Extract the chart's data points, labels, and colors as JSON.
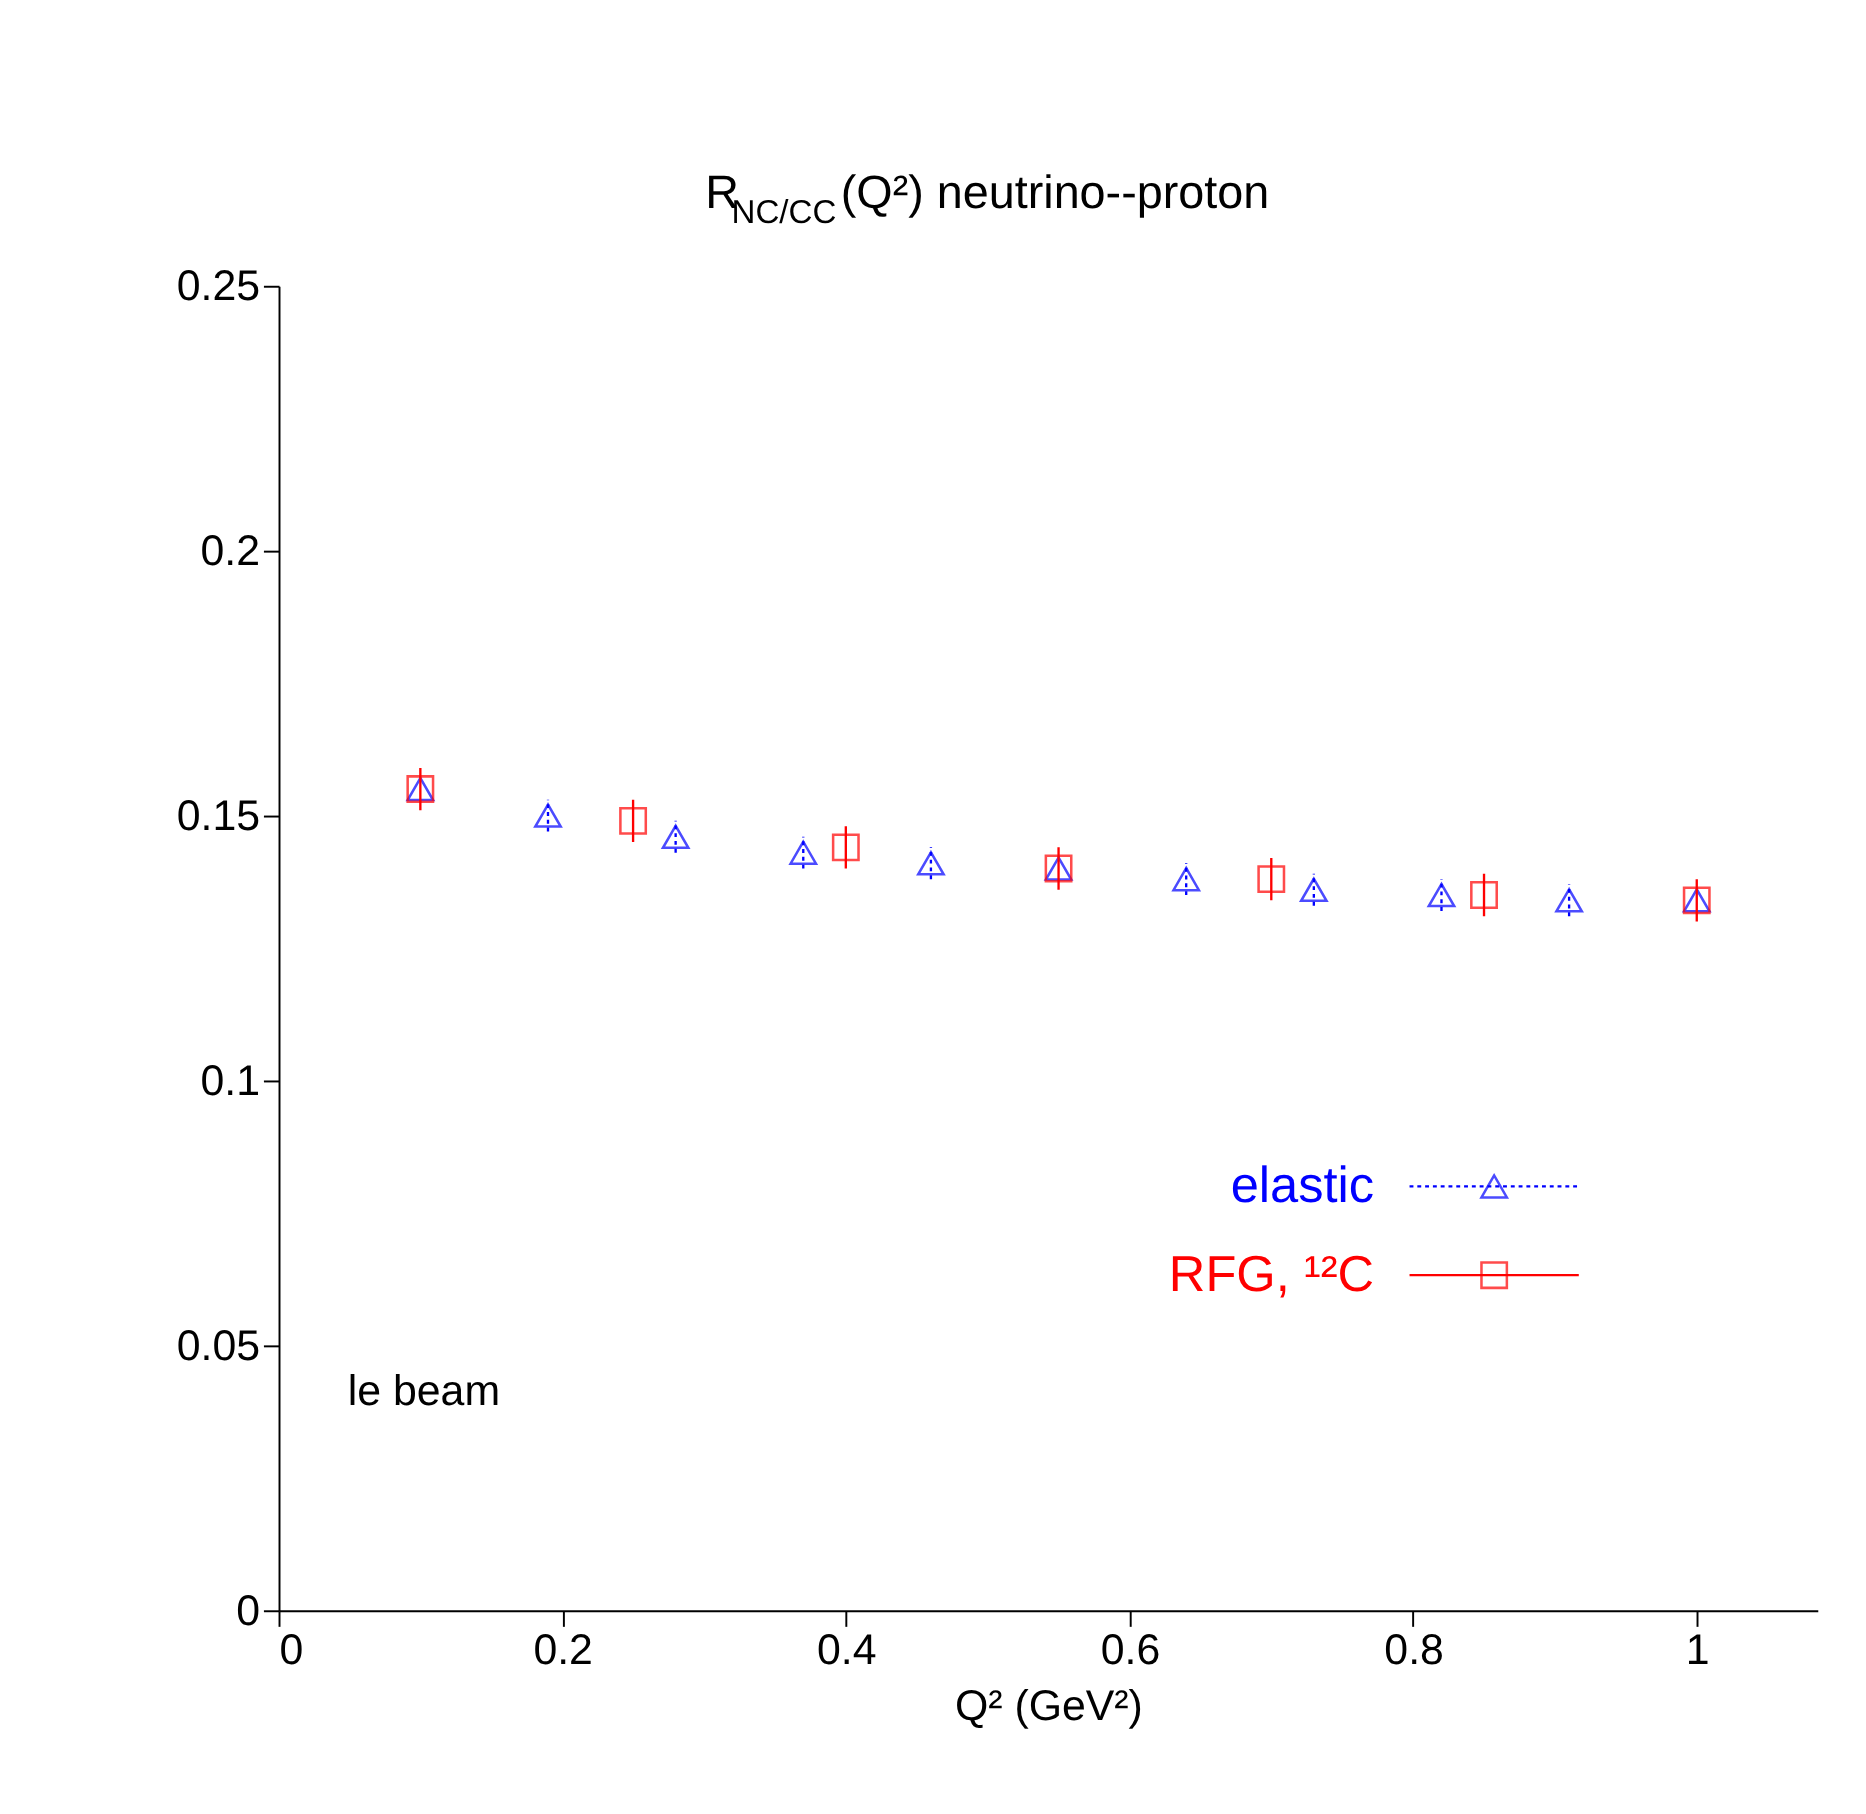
{
  "chart_data": {
    "type": "scatter",
    "title": "R$_{NC/CC}$(Q²) neutrino--proton",
    "xlabel": "Q² (GeV²)",
    "xlim": [
      0,
      1.085
    ],
    "xticks": [
      0,
      0.2,
      0.4,
      0.6,
      0.8,
      1
    ],
    "ylim": [
      0,
      0.25
    ],
    "yticks": [
      0,
      0.05,
      0.1,
      0.15,
      0.2,
      0.25
    ],
    "series": [
      {
        "name": "elastic",
        "color": "#0000ff",
        "marker": "triangle",
        "x": [
          0.1,
          0.19,
          0.28,
          0.37,
          0.46,
          0.55,
          0.64,
          0.73,
          0.82,
          0.91,
          1.0
        ],
        "values": [
          0.155,
          0.15,
          0.146,
          0.143,
          0.141,
          0.14,
          0.138,
          0.136,
          0.135,
          0.134,
          0.134
        ],
        "errors": [
          null,
          0.003,
          0.003,
          0.003,
          0.003,
          null,
          0.003,
          0.003,
          0.003,
          0.003,
          null
        ]
      },
      {
        "name": "RFG, ¹²C",
        "color": "#ff0000",
        "marker": "square",
        "x": [
          0.1,
          0.25,
          0.4,
          0.55,
          0.7,
          0.85,
          1.0
        ],
        "values": [
          0.155,
          0.149,
          0.144,
          0.14,
          0.138,
          0.135,
          0.134
        ],
        "errors": [
          0.004,
          0.004,
          0.004,
          0.004,
          0.004,
          0.004,
          0.004
        ]
      }
    ],
    "legend": "right",
    "grid": false,
    "annotations": [
      "le beam"
    ]
  }
}
